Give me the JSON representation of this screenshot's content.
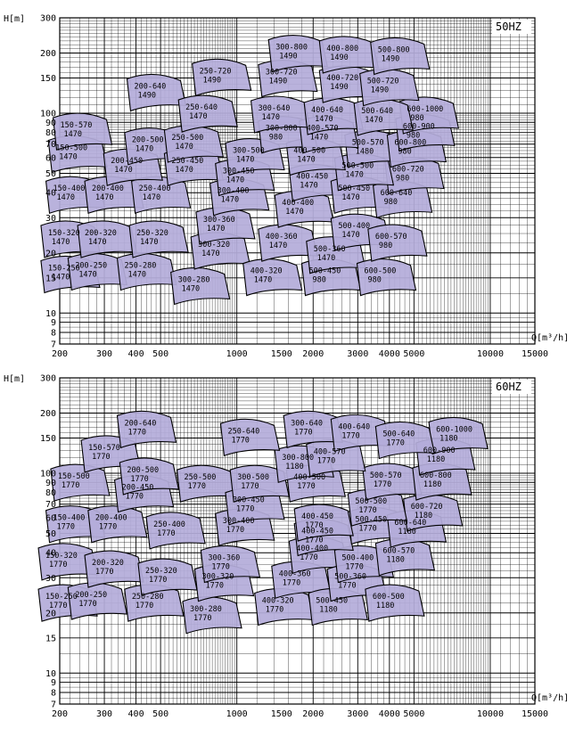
{
  "colors": {
    "region_fill": "#b4acd9",
    "region_stroke": "#000000",
    "grid": "#000000",
    "background": "#ffffff"
  },
  "chart_data": [
    {
      "type": "area",
      "title": "50HZ",
      "xlabel": "Q[m³/h]",
      "ylabel": "H[m]",
      "xscale": "log",
      "yscale": "log",
      "xlim": [
        200,
        15000
      ],
      "ylim": [
        7,
        300
      ],
      "x_ticks": [
        "200",
        "300",
        "400",
        "500",
        "1000",
        "1500",
        "2000",
        "3000",
        "4000",
        "5000",
        "10000",
        "15000"
      ],
      "y_ticks": [
        "7",
        "8",
        "9",
        "10",
        "15",
        "20",
        "30",
        "40",
        "50",
        "60",
        "70",
        "80",
        "90",
        "100",
        "150",
        "200",
        "300"
      ],
      "grid": true,
      "regions": [
        {
          "label": "150-250",
          "speed": "1470",
          "q": 215,
          "h": 16
        },
        {
          "label": "200-250",
          "speed": "1470",
          "q": 275,
          "h": 16.5
        },
        {
          "label": "150-320",
          "speed": "1470",
          "q": 215,
          "h": 24
        },
        {
          "label": "200-320",
          "speed": "1470",
          "q": 300,
          "h": 24
        },
        {
          "label": "250-280",
          "speed": "1470",
          "q": 430,
          "h": 16.5
        },
        {
          "label": "250-320",
          "speed": "1470",
          "q": 480,
          "h": 24
        },
        {
          "label": "300-280",
          "speed": "1470",
          "q": 700,
          "h": 14
        },
        {
          "label": "300-320",
          "speed": "1470",
          "q": 840,
          "h": 21
        },
        {
          "label": "150-400",
          "speed": "1470",
          "q": 225,
          "h": 40
        },
        {
          "label": "200-400",
          "speed": "1470",
          "q": 320,
          "h": 40
        },
        {
          "label": "250-400",
          "speed": "1470",
          "q": 490,
          "h": 40
        },
        {
          "label": "300-360",
          "speed": "1470",
          "q": 880,
          "h": 28
        },
        {
          "label": "300-400",
          "speed": "1470",
          "q": 1000,
          "h": 39
        },
        {
          "label": "400-320",
          "speed": "1470",
          "q": 1350,
          "h": 15.5
        },
        {
          "label": "400-360",
          "speed": "1470",
          "q": 1550,
          "h": 23
        },
        {
          "label": "400-400",
          "speed": "1470",
          "q": 1800,
          "h": 34
        },
        {
          "label": "500-450",
          "speed": "980",
          "q": 2300,
          "h": 15.5
        },
        {
          "label": "500-360",
          "speed": "1470",
          "q": 2400,
          "h": 20
        },
        {
          "label": "500-400",
          "speed": "1470",
          "q": 3000,
          "h": 26
        },
        {
          "label": "400-450",
          "speed": "1470",
          "q": 2050,
          "h": 46
        },
        {
          "label": "500-450",
          "speed": "1470",
          "q": 3000,
          "h": 40
        },
        {
          "label": "600-500",
          "speed": "980",
          "q": 3800,
          "h": 15.5
        },
        {
          "label": "600-570",
          "speed": "980",
          "q": 4200,
          "h": 23
        },
        {
          "label": "600-640",
          "speed": "980",
          "q": 4400,
          "h": 38
        },
        {
          "label": "600-720",
          "speed": "980",
          "q": 4900,
          "h": 50
        },
        {
          "label": "500-500",
          "speed": "1470",
          "q": 3100,
          "h": 52
        },
        {
          "label": "500-570",
          "speed": "1480",
          "q": 3400,
          "h": 68
        },
        {
          "label": "600-800",
          "speed": "980",
          "q": 5000,
          "h": 68
        },
        {
          "label": "600-900",
          "speed": "980",
          "q": 5400,
          "h": 82
        },
        {
          "label": "600-1000",
          "speed": "980",
          "q": 5600,
          "h": 100
        },
        {
          "label": "150-500",
          "speed": "1470",
          "q": 230,
          "h": 64
        },
        {
          "label": "150-570",
          "speed": "1470",
          "q": 240,
          "h": 83
        },
        {
          "label": "200-450",
          "speed": "1470",
          "q": 380,
          "h": 55
        },
        {
          "label": "200-500",
          "speed": "1470",
          "q": 460,
          "h": 70
        },
        {
          "label": "250-450",
          "speed": "1470",
          "q": 660,
          "h": 55
        },
        {
          "label": "250-500",
          "speed": "1470",
          "q": 660,
          "h": 72
        },
        {
          "label": "300-450",
          "speed": "1470",
          "q": 1050,
          "h": 49
        },
        {
          "label": "300-500",
          "speed": "1470",
          "q": 1150,
          "h": 62
        },
        {
          "label": "400-500",
          "speed": "1470",
          "q": 2000,
          "h": 62
        },
        {
          "label": "300-800",
          "speed": "980",
          "q": 1550,
          "h": 80
        },
        {
          "label": "400-570",
          "speed": "1470",
          "q": 2250,
          "h": 80
        },
        {
          "label": "300-640",
          "speed": "1470",
          "q": 1450,
          "h": 101
        },
        {
          "label": "400-640",
          "speed": "1470",
          "q": 2350,
          "h": 99
        },
        {
          "label": "500-640",
          "speed": "1470",
          "q": 3700,
          "h": 98
        },
        {
          "label": "200-640",
          "speed": "1490",
          "q": 470,
          "h": 130
        },
        {
          "label": "250-640",
          "speed": "1470",
          "q": 750,
          "h": 102
        },
        {
          "label": "250-720",
          "speed": "1490",
          "q": 850,
          "h": 155
        },
        {
          "label": "300-720",
          "speed": "1490",
          "q": 1550,
          "h": 153
        },
        {
          "label": "400-720",
          "speed": "1490",
          "q": 2700,
          "h": 143
        },
        {
          "label": "500-720",
          "speed": "1490",
          "q": 3900,
          "h": 138
        },
        {
          "label": "300-800",
          "speed": "1490",
          "q": 1700,
          "h": 204
        },
        {
          "label": "400-800",
          "speed": "1490",
          "q": 2700,
          "h": 201
        },
        {
          "label": "500-800",
          "speed": "1490",
          "q": 4300,
          "h": 198
        }
      ]
    },
    {
      "type": "area",
      "title": "60HZ",
      "xlabel": "Q[m³/h]",
      "ylabel": "H[m]",
      "xscale": "log",
      "yscale": "log",
      "xlim": [
        200,
        15000
      ],
      "ylim": [
        7,
        300
      ],
      "x_ticks": [
        "200",
        "300",
        "400",
        "500",
        "1000",
        "1500",
        "2000",
        "3000",
        "4000",
        "5000",
        "10000",
        "15000"
      ],
      "y_ticks": [
        "7",
        "8",
        "9",
        "10",
        "15",
        "20",
        "30",
        "40",
        "50",
        "60",
        "70",
        "80",
        "90",
        "100",
        "150",
        "200",
        "300"
      ],
      "grid": true,
      "regions": [
        {
          "label": "150-250",
          "speed": "1770",
          "q": 210,
          "h": 23
        },
        {
          "label": "200-250",
          "speed": "1770",
          "q": 275,
          "h": 23.5
        },
        {
          "label": "150-320",
          "speed": "1770",
          "q": 210,
          "h": 37
        },
        {
          "label": "200-320",
          "speed": "1770",
          "q": 320,
          "h": 34
        },
        {
          "label": "250-280",
          "speed": "1770",
          "q": 460,
          "h": 23
        },
        {
          "label": "250-320",
          "speed": "1770",
          "q": 520,
          "h": 31
        },
        {
          "label": "300-280",
          "speed": "1770",
          "q": 780,
          "h": 20
        },
        {
          "label": "300-320",
          "speed": "1770",
          "q": 870,
          "h": 29
        },
        {
          "label": "150-400",
          "speed": "1770",
          "q": 225,
          "h": 57
        },
        {
          "label": "200-400",
          "speed": "1770",
          "q": 330,
          "h": 57
        },
        {
          "label": "250-400",
          "speed": "1770",
          "q": 560,
          "h": 53
        },
        {
          "label": "300-360",
          "speed": "1770",
          "q": 920,
          "h": 36
        },
        {
          "label": "300-400",
          "speed": "1770",
          "q": 1050,
          "h": 55
        },
        {
          "label": "400-320",
          "speed": "1770",
          "q": 1500,
          "h": 22
        },
        {
          "label": "400-360",
          "speed": "1770",
          "q": 1750,
          "h": 30
        },
        {
          "label": "400-400",
          "speed": "1770",
          "q": 2050,
          "h": 40
        },
        {
          "label": "500-450",
          "speed": "1180",
          "q": 2450,
          "h": 22
        },
        {
          "label": "500-360",
          "speed": "1770",
          "q": 2900,
          "h": 29
        },
        {
          "label": "500-400",
          "speed": "1770",
          "q": 3100,
          "h": 36
        },
        {
          "label": "400-450",
          "speed": "1770",
          "q": 2150,
          "h": 49
        },
        {
          "label": "500-450",
          "speed": "1770",
          "q": 3500,
          "h": 56
        },
        {
          "label": "600-500",
          "speed": "1180",
          "q": 4100,
          "h": 23
        },
        {
          "label": "600-570",
          "speed": "1180",
          "q": 4500,
          "h": 39
        },
        {
          "label": "600-640",
          "speed": "1180",
          "q": 5000,
          "h": 54
        },
        {
          "label": "600-720",
          "speed": "1180",
          "q": 5800,
          "h": 65
        },
        {
          "label": "500-500",
          "speed": "1770",
          "q": 3500,
          "h": 69
        },
        {
          "label": "500-570",
          "speed": "1770",
          "q": 4000,
          "h": 93
        },
        {
          "label": "600-800",
          "speed": "1180",
          "q": 6300,
          "h": 93
        },
        {
          "label": "600-900",
          "speed": "1180",
          "q": 6500,
          "h": 124
        },
        {
          "label": "600-1000",
          "speed": "1180",
          "q": 7300,
          "h": 158
        },
        {
          "label": "150-500",
          "speed": "1770",
          "q": 235,
          "h": 92
        },
        {
          "label": "150-570",
          "speed": "1770",
          "q": 310,
          "h": 128
        },
        {
          "label": "200-450",
          "speed": "1770",
          "q": 420,
          "h": 81
        },
        {
          "label": "200-500",
          "speed": "1770",
          "q": 440,
          "h": 99
        },
        {
          "label": "250-500",
          "speed": "1770",
          "q": 740,
          "h": 91
        },
        {
          "label": "300-450",
          "speed": "1770",
          "q": 1150,
          "h": 70
        },
        {
          "label": "300-500",
          "speed": "1770",
          "q": 1200,
          "h": 91
        },
        {
          "label": "400-500",
          "speed": "1770",
          "q": 2000,
          "h": 91
        },
        {
          "label": "400-450",
          "speed": "1770",
          "q": 2150,
          "h": 58
        },
        {
          "label": "300-800",
          "speed": "1180",
          "q": 1800,
          "h": 114
        },
        {
          "label": "400-570",
          "speed": "1770",
          "q": 2400,
          "h": 122
        },
        {
          "label": "300-640",
          "speed": "1770",
          "q": 1950,
          "h": 170
        },
        {
          "label": "400-640",
          "speed": "1770",
          "q": 3000,
          "h": 163
        },
        {
          "label": "500-640",
          "speed": "1770",
          "q": 4500,
          "h": 150
        },
        {
          "label": "200-640",
          "speed": "1770",
          "q": 430,
          "h": 170
        },
        {
          "label": "250-640",
          "speed": "1770",
          "q": 1100,
          "h": 155
        }
      ]
    }
  ]
}
